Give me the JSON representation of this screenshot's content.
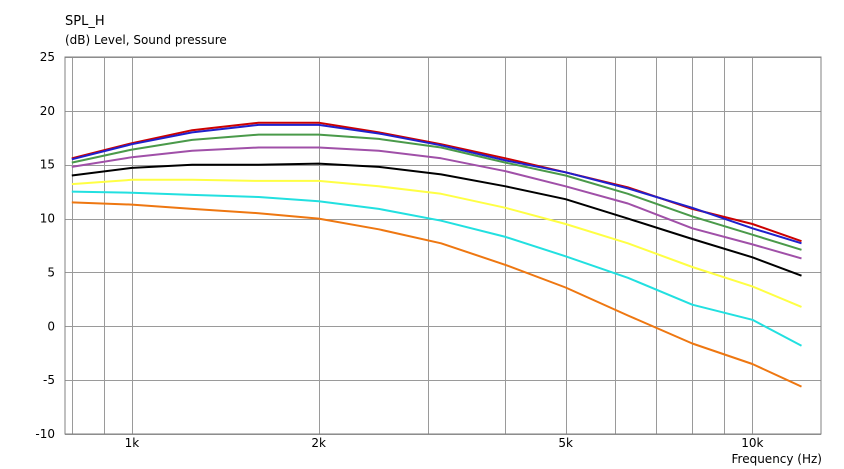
{
  "chart_data": {
    "type": "line",
    "title": "SPL_H",
    "ylabel": "(dB)  Level, Sound pressure",
    "xlabel": "Frequency  (Hz)",
    "xscale": "log",
    "xlim": [
      780,
      12900
    ],
    "ylim": [
      -10,
      25
    ],
    "grid": true,
    "yticks": [
      25,
      20,
      15,
      10,
      5,
      0,
      -5,
      -10
    ],
    "yticklabels": [
      "25",
      "20",
      "15",
      "10",
      "5",
      "0",
      "-5",
      "-10"
    ],
    "xticks": [
      1000,
      2000,
      5000,
      10000
    ],
    "xticklabels": [
      "1k",
      "2k",
      "5k",
      "10k"
    ],
    "xgrid": [
      800,
      900,
      1000,
      2000,
      3000,
      4000,
      5000,
      6000,
      7000,
      8000,
      9000,
      10000
    ],
    "x": [
      800,
      1000,
      1250,
      1600,
      2000,
      2500,
      3150,
      4000,
      5000,
      6300,
      8000,
      10000,
      12000
    ],
    "series": [
      {
        "color": "#cc0000",
        "values": [
          15.6,
          17.0,
          18.2,
          18.9,
          18.9,
          18.0,
          16.9,
          15.6,
          14.3,
          12.9,
          10.9,
          9.5,
          7.9
        ]
      },
      {
        "color": "#2020cc",
        "values": [
          15.5,
          16.9,
          18.0,
          18.7,
          18.7,
          17.9,
          16.8,
          15.4,
          14.3,
          12.8,
          11.0,
          9.1,
          7.7
        ]
      },
      {
        "color": "#4a9a4a",
        "values": [
          15.2,
          16.4,
          17.3,
          17.8,
          17.8,
          17.4,
          16.6,
          15.2,
          14.0,
          12.3,
          10.2,
          8.5,
          7.1
        ]
      },
      {
        "color": "#a050a8",
        "values": [
          14.8,
          15.7,
          16.3,
          16.6,
          16.6,
          16.3,
          15.6,
          14.4,
          13.0,
          11.4,
          9.1,
          7.6,
          6.3
        ]
      },
      {
        "color": "#000000",
        "values": [
          14.0,
          14.7,
          15.0,
          15.0,
          15.1,
          14.8,
          14.1,
          13.0,
          11.8,
          10.0,
          8.1,
          6.4,
          4.7
        ]
      },
      {
        "color": "#ffff44",
        "values": [
          13.2,
          13.6,
          13.6,
          13.5,
          13.5,
          13.0,
          12.3,
          11.0,
          9.5,
          7.7,
          5.5,
          3.7,
          1.8
        ]
      },
      {
        "color": "#22e0e0",
        "values": [
          12.5,
          12.4,
          12.2,
          12.0,
          11.6,
          10.9,
          9.8,
          8.3,
          6.5,
          4.5,
          2.0,
          0.6,
          -1.8
        ]
      },
      {
        "color": "#ee7711",
        "values": [
          11.5,
          11.3,
          10.9,
          10.5,
          10.0,
          9.0,
          7.7,
          5.7,
          3.6,
          1.0,
          -1.6,
          -3.5,
          -5.6
        ]
      }
    ]
  }
}
